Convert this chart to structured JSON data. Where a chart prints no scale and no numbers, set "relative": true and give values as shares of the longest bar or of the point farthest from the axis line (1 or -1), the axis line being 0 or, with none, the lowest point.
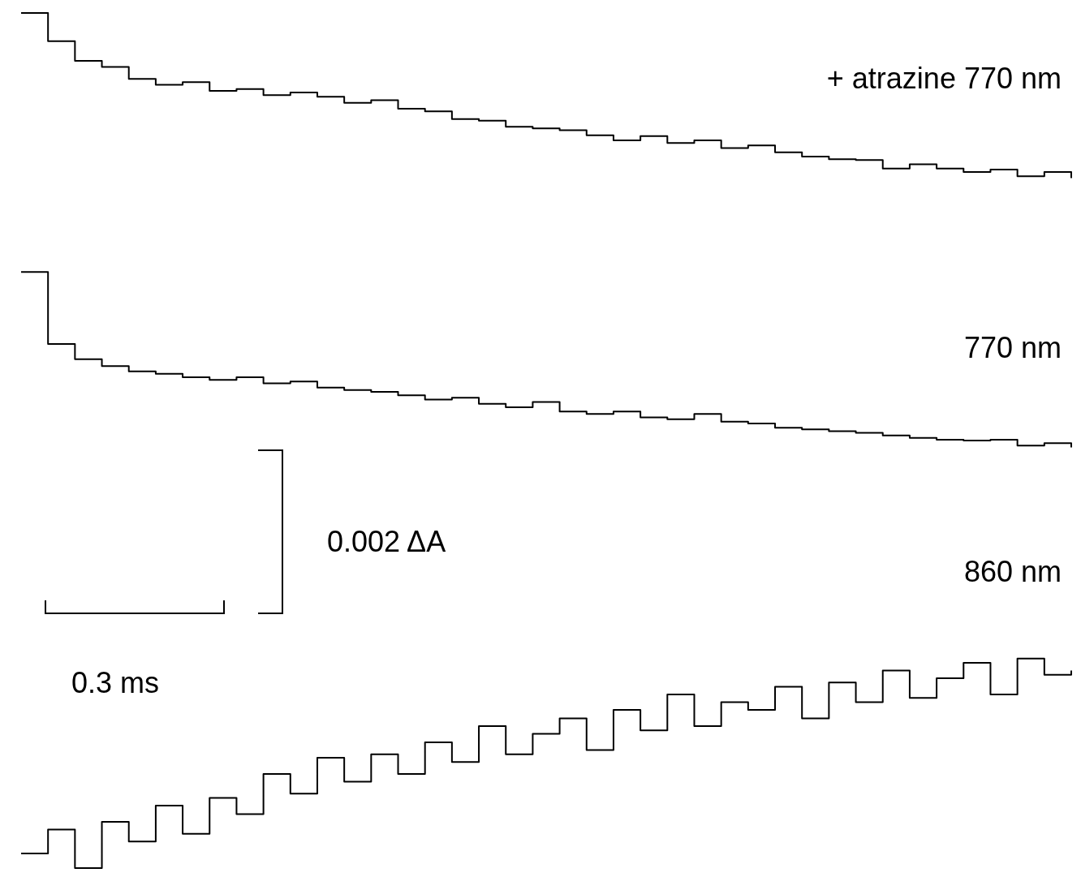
{
  "chart_data": {
    "type": "step",
    "relative": true,
    "categories": [
      null,
      null,
      null,
      null,
      null,
      null,
      null,
      null,
      null,
      null,
      null,
      null,
      null,
      null,
      null,
      null,
      null,
      null,
      null,
      null,
      null,
      null,
      null,
      null,
      null,
      null,
      null,
      null,
      null,
      null,
      null,
      null,
      null,
      null,
      null,
      null,
      null,
      null,
      null,
      null
    ],
    "series": [
      {
        "name": "+ atrazine  770 nm",
        "color": "#000000",
        "values": [
          1.0,
          0.967,
          0.944,
          0.937,
          0.923,
          0.916,
          0.919,
          0.909,
          0.911,
          0.904,
          0.907,
          0.902,
          0.895,
          0.898,
          0.888,
          0.885,
          0.876,
          0.874,
          0.867,
          0.865,
          0.863,
          0.857,
          0.851,
          0.856,
          0.848,
          0.851,
          0.842,
          0.845,
          0.837,
          0.832,
          0.829,
          0.828,
          0.818,
          0.823,
          0.818,
          0.814,
          0.817,
          0.809,
          0.814,
          0.807
        ]
      },
      {
        "name": "770 nm",
        "color": "#000000",
        "values": [
          0.697,
          0.613,
          0.595,
          0.587,
          0.581,
          0.578,
          0.574,
          0.571,
          0.574,
          0.567,
          0.569,
          0.562,
          0.559,
          0.557,
          0.553,
          0.548,
          0.55,
          0.543,
          0.539,
          0.545,
          0.534,
          0.531,
          0.534,
          0.527,
          0.525,
          0.531,
          0.522,
          0.52,
          0.515,
          0.513,
          0.511,
          0.509,
          0.506,
          0.503,
          0.501,
          0.5,
          0.501,
          0.494,
          0.497,
          0.492
        ]
      },
      {
        "name": "860 nm",
        "color": "#000000",
        "values": [
          0.017,
          0.045,
          0.0,
          0.054,
          0.031,
          0.073,
          0.04,
          0.082,
          0.063,
          0.11,
          0.087,
          0.129,
          0.101,
          0.133,
          0.11,
          0.147,
          0.124,
          0.166,
          0.133,
          0.157,
          0.175,
          0.138,
          0.185,
          0.161,
          0.203,
          0.166,
          0.194,
          0.185,
          0.212,
          0.175,
          0.217,
          0.194,
          0.231,
          0.199,
          0.222,
          0.24,
          0.203,
          0.245,
          0.226,
          0.231
        ]
      }
    ],
    "annotations": [
      "0.002 ΔA",
      "0.3 ms"
    ]
  }
}
